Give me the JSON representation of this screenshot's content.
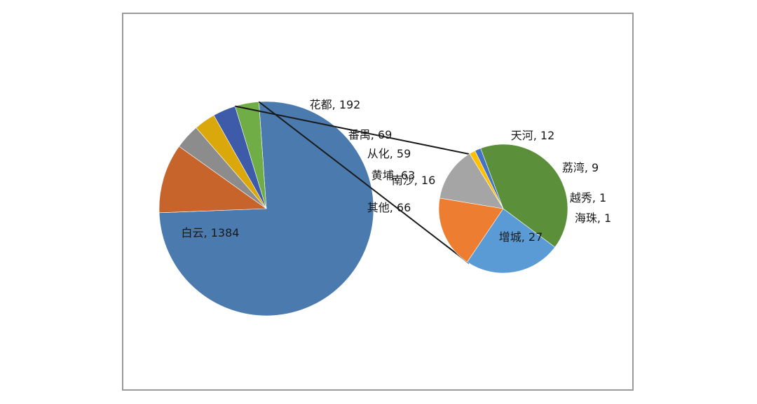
{
  "chart_data": {
    "type": "pie",
    "subtype": "pie-of-pie",
    "title": "",
    "primary": {
      "slices": [
        {
          "label": "白云",
          "value": 1384,
          "color": "#4a7aae"
        },
        {
          "label": "花都",
          "value": 192,
          "color": "#c6642b"
        },
        {
          "label": "番禺",
          "value": 69,
          "color": "#8c8c8c"
        },
        {
          "label": "从化",
          "value": 59,
          "color": "#dba80c"
        },
        {
          "label": "黄埔",
          "value": 63,
          "color": "#3d5ba8"
        },
        {
          "label": "其他",
          "value": 66,
          "color": "#70ad47"
        }
      ]
    },
    "secondary": {
      "slices": [
        {
          "label": "天河",
          "value": 12,
          "color": "#ed7d31"
        },
        {
          "label": "荔湾",
          "value": 9,
          "color": "#a5a5a5"
        },
        {
          "label": "越秀",
          "value": 1,
          "color": "#ffc000"
        },
        {
          "label": "海珠",
          "value": 1,
          "color": "#4472c4"
        },
        {
          "label": "增城",
          "value": 27,
          "color": "#5b8f3a"
        },
        {
          "label": "南沙",
          "value": 16,
          "color": "#5b9bd5"
        }
      ]
    },
    "legend": "none"
  }
}
